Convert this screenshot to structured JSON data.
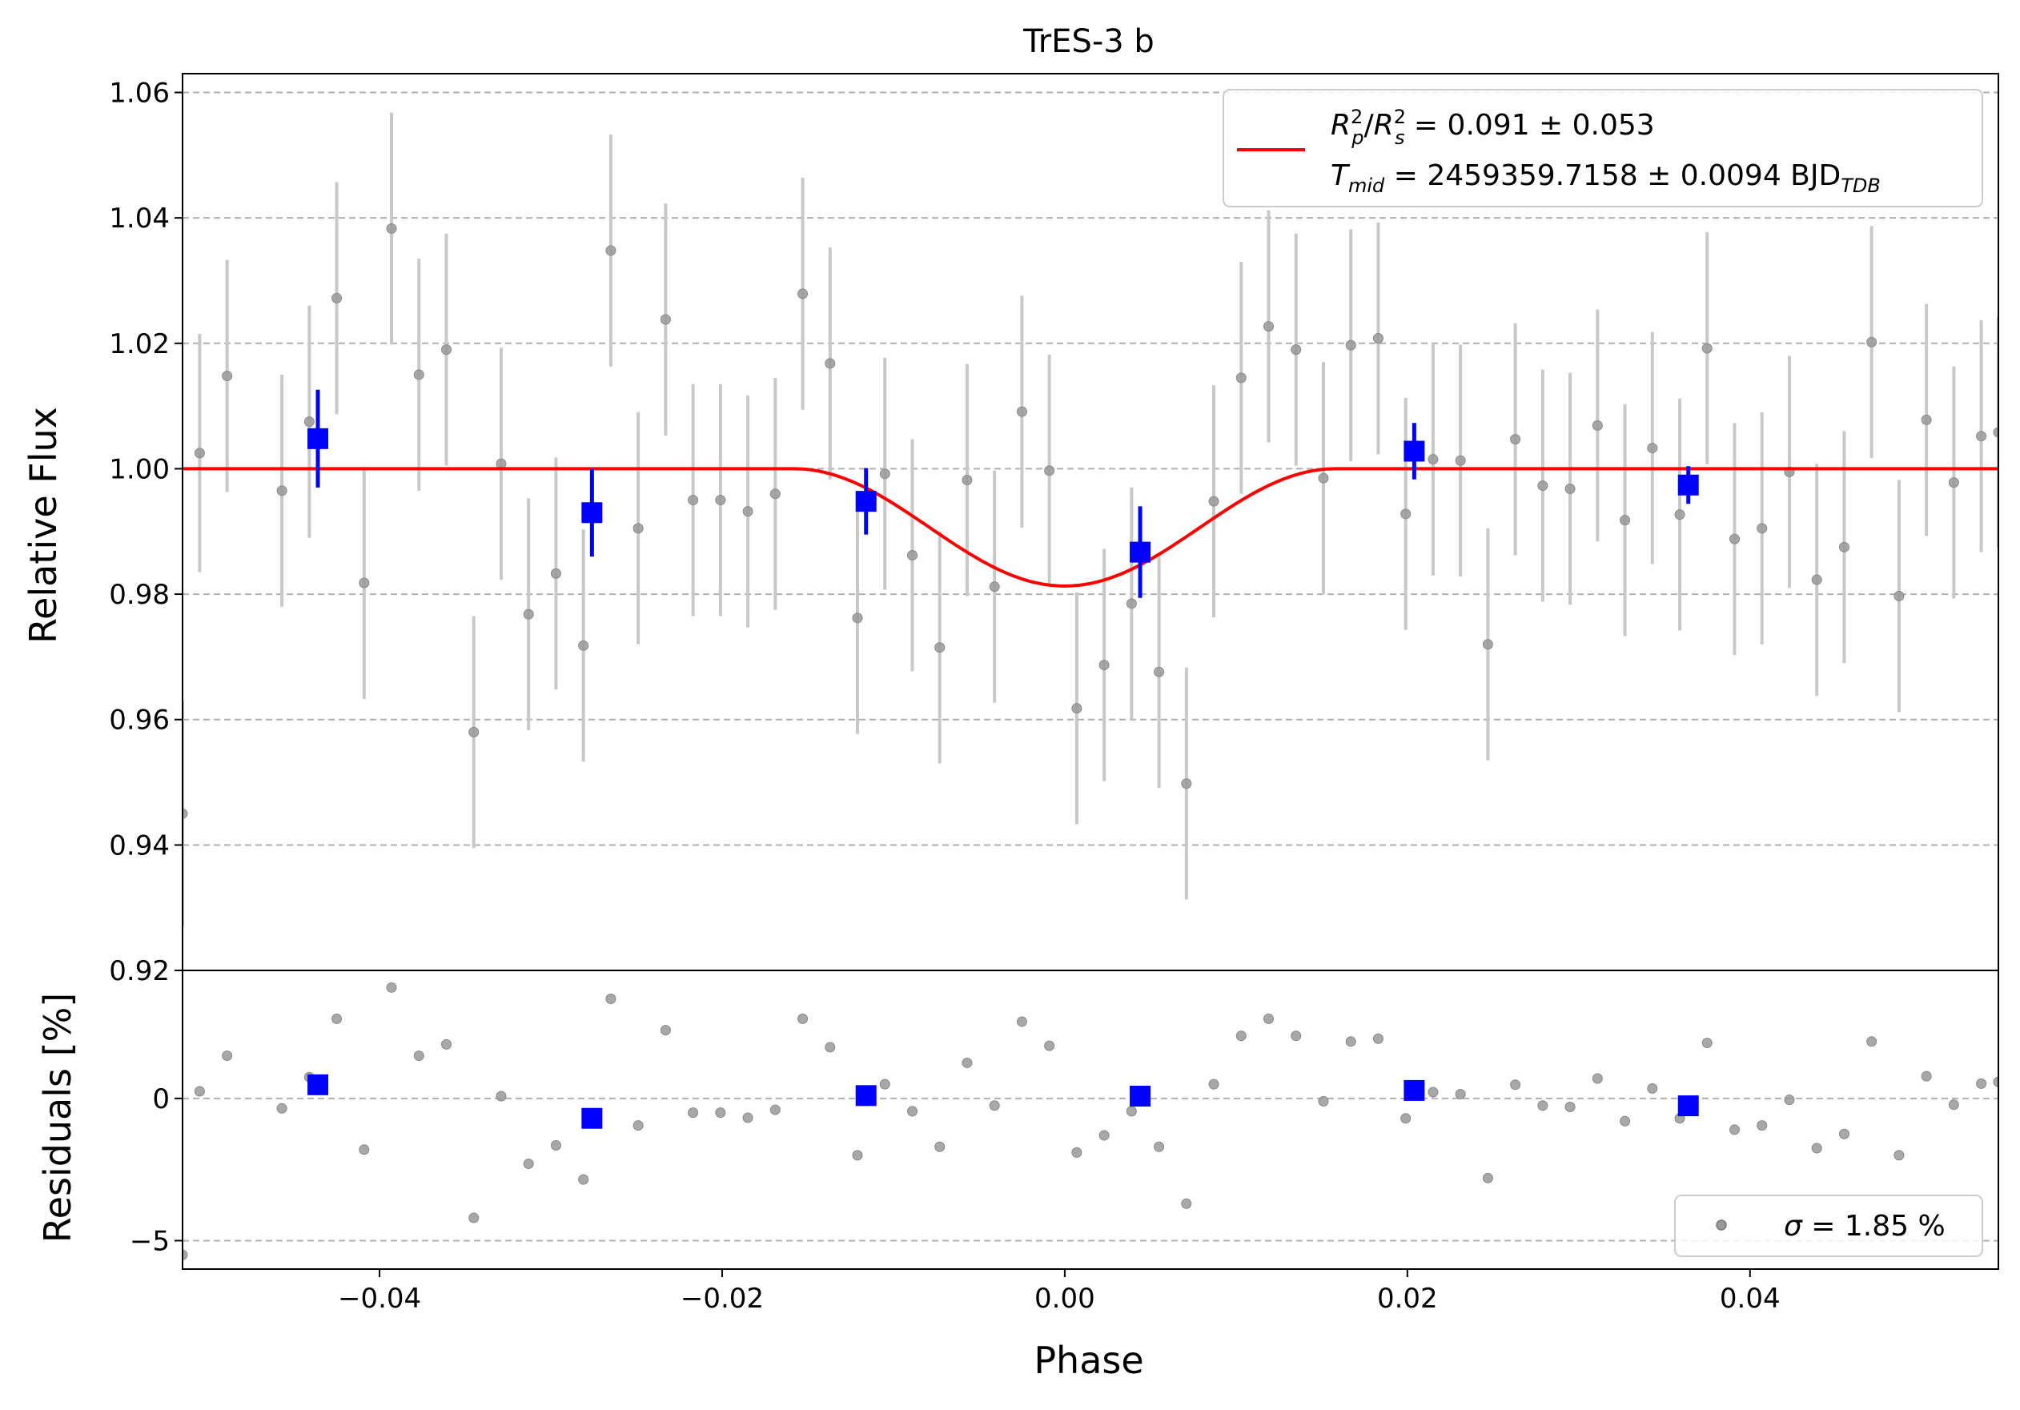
{
  "chart_data": [
    {
      "type": "scatter",
      "panel": "main",
      "title": "TrES-3 b",
      "ylabel": "Relative Flux",
      "xlim": [
        -0.0515,
        0.0545
      ],
      "ylim": [
        0.92,
        1.063
      ],
      "yticks": [
        0.92,
        0.94,
        0.96,
        0.98,
        1.0,
        1.02,
        1.04,
        1.06
      ],
      "ytick_labels": [
        "0.92",
        "0.94",
        "0.96",
        "0.98",
        "1.00",
        "1.02",
        "1.04",
        "1.06"
      ],
      "grid": "horizontal dashed",
      "legend_placement": "top-right",
      "legend": {
        "line_label_1": "Rp²/Rs² = 0.091 ± 0.053",
        "line_label_2": "Tmid = 2459359.7158 ± 0.0094 BJDTDB",
        "r_sym": "R",
        "p_sub": "p",
        "two_sup": "2",
        "slash": "/",
        "s_sub": "s",
        "depth_text": " = 0.091 ± 0.053",
        "t_sym": "T",
        "mid_sub": "mid",
        "tmid_text": " = 2459359.7158 ± 0.0094 BJD",
        "tdb_sub": "TDB"
      },
      "colors": {
        "raw": "#999999",
        "raw_err": "#c8c8c8",
        "binned": "#0000ff",
        "model": "#ff0000",
        "grid": "#b0b0b0"
      },
      "series": [
        {
          "name": "raw",
          "points": [
            [
              -0.0515,
              0.945,
              0.018
            ],
            [
              -0.0505,
              1.0025,
              0.019
            ],
            [
              -0.0489,
              1.0148,
              0.0185
            ],
            [
              -0.0457,
              0.9965,
              0.0185
            ],
            [
              -0.0441,
              1.0075,
              0.0185
            ],
            [
              -0.0425,
              1.0272,
              0.0185
            ],
            [
              -0.0409,
              0.9818,
              0.0185
            ],
            [
              -0.0393,
              1.0383,
              0.0185
            ],
            [
              -0.0377,
              1.015,
              0.0185
            ],
            [
              -0.0361,
              1.019,
              0.0185
            ],
            [
              -0.0345,
              0.958,
              0.0185
            ],
            [
              -0.0329,
              1.0008,
              0.0185
            ],
            [
              -0.0313,
              0.9768,
              0.0185
            ],
            [
              -0.0297,
              0.9833,
              0.0185
            ],
            [
              -0.0281,
              0.9718,
              0.0185
            ],
            [
              -0.0265,
              1.0348,
              0.0185
            ],
            [
              -0.0249,
              0.9905,
              0.0185
            ],
            [
              -0.0233,
              1.0238,
              0.0185
            ],
            [
              -0.0217,
              0.995,
              0.0185
            ],
            [
              -0.0201,
              0.995,
              0.0185
            ],
            [
              -0.0185,
              0.9932,
              0.0185
            ],
            [
              -0.0169,
              0.996,
              0.0185
            ],
            [
              -0.0153,
              1.0279,
              0.0185
            ],
            [
              -0.0137,
              1.0168,
              0.0185
            ],
            [
              -0.0121,
              0.9762,
              0.0185
            ],
            [
              -0.0105,
              0.9992,
              0.0185
            ],
            [
              -0.0089,
              0.9862,
              0.0185
            ],
            [
              -0.0073,
              0.9715,
              0.0185
            ],
            [
              -0.0057,
              0.9982,
              0.0185
            ],
            [
              -0.0041,
              0.9812,
              0.0185
            ],
            [
              -0.0025,
              1.0091,
              0.0185
            ],
            [
              -0.0009,
              0.9997,
              0.0185
            ],
            [
              0.0007,
              0.9618,
              0.0185
            ],
            [
              0.0023,
              0.9687,
              0.0185
            ],
            [
              0.0039,
              0.9785,
              0.0185
            ],
            [
              0.0055,
              0.9676,
              0.0185
            ],
            [
              0.0071,
              0.9498,
              0.0185
            ],
            [
              0.0087,
              0.9948,
              0.0185
            ],
            [
              0.0103,
              1.0145,
              0.0185
            ],
            [
              0.0119,
              1.0227,
              0.0185
            ],
            [
              0.0135,
              1.019,
              0.0185
            ],
            [
              0.0151,
              0.9985,
              0.0185
            ],
            [
              0.0167,
              1.0197,
              0.0185
            ],
            [
              0.0183,
              1.0208,
              0.0185
            ],
            [
              0.0199,
              0.9928,
              0.0185
            ],
            [
              0.0215,
              1.0015,
              0.0185
            ],
            [
              0.0231,
              1.0013,
              0.0185
            ],
            [
              0.0247,
              0.972,
              0.0185
            ],
            [
              0.0263,
              1.0047,
              0.0185
            ],
            [
              0.0279,
              0.9973,
              0.0185
            ],
            [
              0.0295,
              0.9968,
              0.0185
            ],
            [
              0.0311,
              1.0069,
              0.0185
            ],
            [
              0.0327,
              0.9918,
              0.0185
            ],
            [
              0.0343,
              1.0033,
              0.0185
            ],
            [
              0.0359,
              0.9927,
              0.0185
            ],
            [
              0.0375,
              1.0192,
              0.0185
            ],
            [
              0.0391,
              0.9888,
              0.0185
            ],
            [
              0.0407,
              0.9905,
              0.0185
            ],
            [
              0.0423,
              0.9995,
              0.0185
            ],
            [
              0.0439,
              0.9823,
              0.0185
            ],
            [
              0.0455,
              0.9875,
              0.0185
            ],
            [
              0.0471,
              1.0202,
              0.0185
            ],
            [
              0.0487,
              0.9797,
              0.0185
            ],
            [
              0.0503,
              1.0078,
              0.0185
            ],
            [
              0.0519,
              0.9978,
              0.0185
            ],
            [
              0.0535,
              1.0052,
              0.0185
            ],
            [
              0.0545,
              1.0058,
              0.0185
            ]
          ]
        },
        {
          "name": "binned",
          "points": [
            [
              -0.0436,
              1.0048,
              0.0078
            ],
            [
              -0.0276,
              0.993,
              0.007
            ],
            [
              -0.0116,
              0.9948,
              0.0053
            ],
            [
              0.0044,
              0.9867,
              0.0073
            ],
            [
              0.0204,
              1.0028,
              0.0045
            ],
            [
              0.0364,
              0.9974,
              0.003
            ]
          ]
        },
        {
          "name": "model",
          "baseline": 1.0,
          "depth": 0.0187,
          "transit_start": -0.0158,
          "transit_end": 0.0158
        }
      ]
    },
    {
      "type": "scatter",
      "panel": "residuals",
      "xlabel": "Phase",
      "ylabel": "Residuals [%]",
      "xlim": [
        -0.0515,
        0.0545
      ],
      "ylim": [
        -6.0,
        4.5
      ],
      "xticks": [
        -0.04,
        -0.02,
        0.0,
        0.02,
        0.04
      ],
      "xtick_labels": [
        "−0.04",
        "−0.02",
        "0.00",
        "0.02",
        "0.04"
      ],
      "yticks": [
        -5,
        0
      ],
      "ytick_labels": [
        "−5",
        "0"
      ],
      "grid": "horizontal dashed",
      "legend_placement": "bottom-right",
      "legend": {
        "sigma_sym": "σ",
        "sigma_text": " = 1.85 %"
      },
      "series": [
        {
          "name": "raw",
          "points": [
            [
              -0.0515,
              -5.5
            ],
            [
              -0.0505,
              0.25
            ],
            [
              -0.0489,
              1.5
            ],
            [
              -0.0457,
              -0.35
            ],
            [
              -0.0441,
              0.75
            ],
            [
              -0.0425,
              2.8
            ],
            [
              -0.0409,
              -1.8
            ],
            [
              -0.0393,
              3.9
            ],
            [
              -0.0377,
              1.5
            ],
            [
              -0.0361,
              1.9
            ],
            [
              -0.0345,
              -4.2
            ],
            [
              -0.0329,
              0.08
            ],
            [
              -0.0313,
              -2.3
            ],
            [
              -0.0297,
              -1.65
            ],
            [
              -0.0281,
              -2.85
            ],
            [
              -0.0265,
              3.5
            ],
            [
              -0.0249,
              -0.95
            ],
            [
              -0.0233,
              2.4
            ],
            [
              -0.0217,
              -0.5
            ],
            [
              -0.0201,
              -0.5
            ],
            [
              -0.0185,
              -0.68
            ],
            [
              -0.0169,
              -0.4
            ],
            [
              -0.0153,
              2.8
            ],
            [
              -0.0137,
              1.8
            ],
            [
              -0.0121,
              -2.0
            ],
            [
              -0.0105,
              0.5
            ],
            [
              -0.0089,
              -0.45
            ],
            [
              -0.0073,
              -1.7
            ],
            [
              -0.0057,
              1.25
            ],
            [
              -0.0041,
              -0.25
            ],
            [
              -0.0025,
              2.7
            ],
            [
              -0.0009,
              1.85
            ],
            [
              0.0007,
              -1.9
            ],
            [
              0.0023,
              -1.3
            ],
            [
              0.0039,
              -0.45
            ],
            [
              0.0055,
              -1.7
            ],
            [
              0.0071,
              -3.7
            ],
            [
              0.0087,
              0.5
            ],
            [
              0.0103,
              2.2
            ],
            [
              0.0119,
              2.8
            ],
            [
              0.0135,
              2.2
            ],
            [
              0.0151,
              -0.1
            ],
            [
              0.0167,
              2.0
            ],
            [
              0.0183,
              2.1
            ],
            [
              0.0199,
              -0.7
            ],
            [
              0.0215,
              0.22
            ],
            [
              0.0231,
              0.15
            ],
            [
              0.0247,
              -2.8
            ],
            [
              0.0263,
              0.48
            ],
            [
              0.0279,
              -0.25
            ],
            [
              0.0295,
              -0.3
            ],
            [
              0.0311,
              0.7
            ],
            [
              0.0327,
              -0.8
            ],
            [
              0.0343,
              0.35
            ],
            [
              0.0359,
              -0.7
            ],
            [
              0.0375,
              1.95
            ],
            [
              0.0391,
              -1.1
            ],
            [
              0.0407,
              -0.95
            ],
            [
              0.0423,
              -0.05
            ],
            [
              0.0439,
              -1.75
            ],
            [
              0.0455,
              -1.25
            ],
            [
              0.0471,
              2.0
            ],
            [
              0.0487,
              -2.0
            ],
            [
              0.0503,
              0.78
            ],
            [
              0.0519,
              -0.22
            ],
            [
              0.0535,
              0.52
            ],
            [
              0.0545,
              0.58
            ]
          ]
        },
        {
          "name": "binned",
          "points": [
            [
              -0.0436,
              0.48
            ],
            [
              -0.0276,
              -0.7
            ],
            [
              -0.0116,
              0.1
            ],
            [
              0.0044,
              0.08
            ],
            [
              0.0204,
              0.28
            ],
            [
              0.0364,
              -0.26
            ]
          ]
        }
      ]
    }
  ]
}
